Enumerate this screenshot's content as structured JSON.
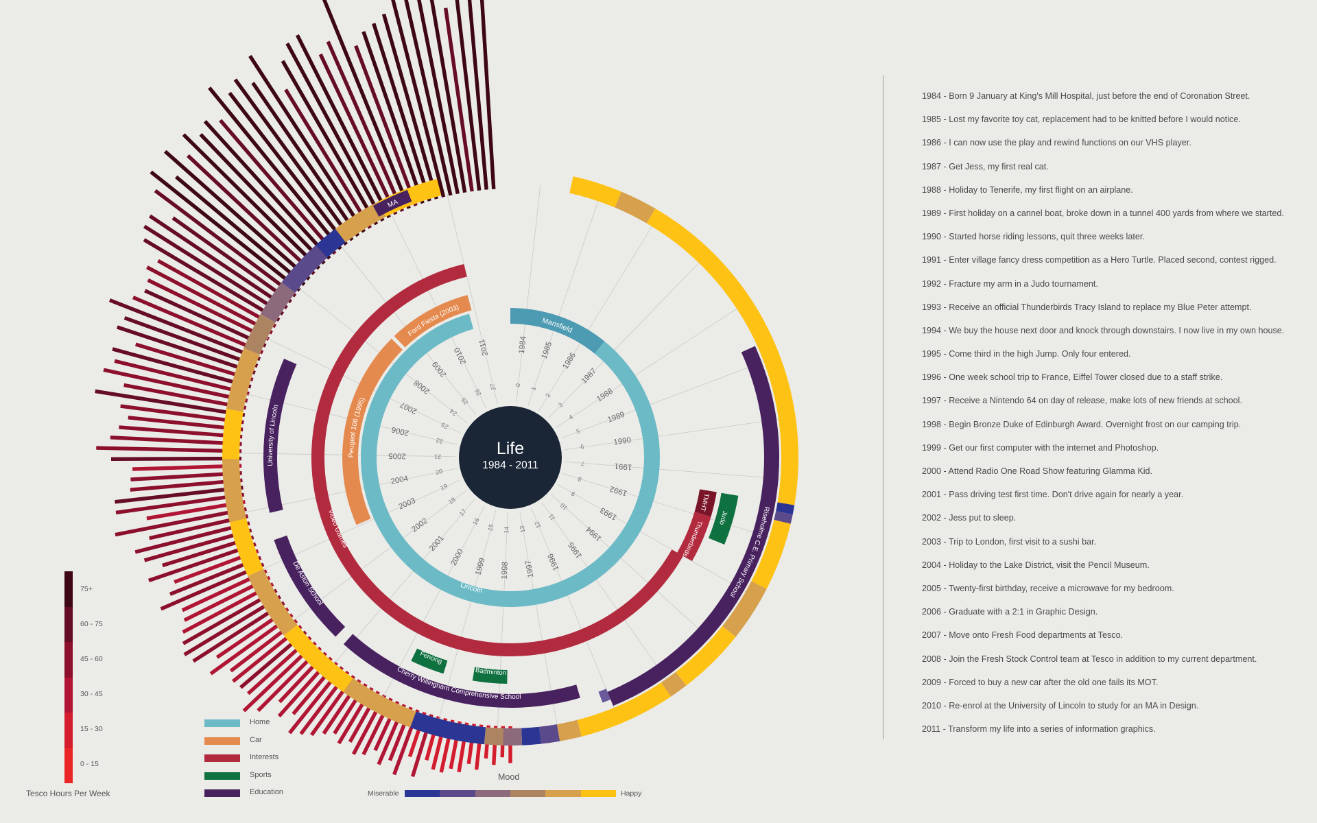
{
  "center": {
    "title": "Life",
    "subtitle": "1984 - 2011"
  },
  "colors": {
    "home": "#6bbac6",
    "home_dark": "#4d9ab3",
    "car": "#e58a4e",
    "interests": "#b22a3e",
    "interests_dark": "#7a1428",
    "sports": "#0f7040",
    "education": "#48215f",
    "center": "#1a2535",
    "background": "#ebebe8"
  },
  "years": [
    "1984",
    "1985",
    "1986",
    "1987",
    "1988",
    "1989",
    "1990",
    "1991",
    "1992",
    "1993",
    "1994",
    "1995",
    "1996",
    "1997",
    "1998",
    "1999",
    "2000",
    "2001",
    "2002",
    "2003",
    "2004",
    "2005",
    "2006",
    "2007",
    "2008",
    "2009",
    "2010",
    "2011"
  ],
  "ages": [
    "0",
    "1",
    "2",
    "3",
    "4",
    "5",
    "6",
    "7",
    "8",
    "9",
    "10",
    "11",
    "12",
    "13",
    "14",
    "15",
    "16",
    "17",
    "18",
    "19",
    "20",
    "21",
    "22",
    "23",
    "24",
    "25",
    "26",
    "27"
  ],
  "home_labels": {
    "mansfield": "Mansfield",
    "lincoln": "Lincoln"
  },
  "car_labels": {
    "peugeot": "Peugeot 106 (1995)",
    "fiesta": "Ford Fiesta (2003)"
  },
  "interest_labels": {
    "video_games": "Video Games",
    "thunderbirds": "Thunderbirds",
    "tmht": "TMHT"
  },
  "sports_labels": {
    "judo": "Judo",
    "fencing": "Fencing",
    "badminton": "Badminton"
  },
  "education_labels": {
    "university": "University of Lincoln",
    "primary": "Riseholme C.E. Primary School",
    "comprehensive": "Cherry Willingham Comprehensive School",
    "de_aston": "De Aston School",
    "ma": "MA"
  },
  "legend": [
    {
      "label": "Home",
      "color": "#6bbac6"
    },
    {
      "label": "Car",
      "color": "#e58a4e"
    },
    {
      "label": "Interests",
      "color": "#b22a3e"
    },
    {
      "label": "Sports",
      "color": "#0f7040"
    },
    {
      "label": "Education",
      "color": "#48215f"
    }
  ],
  "tesco": {
    "title": "Tesco Hours Per Week",
    "levels": [
      "75+",
      "60 - 75",
      "45 - 60",
      "30 - 45",
      "15 - 30",
      "0 - 15"
    ],
    "colors": [
      "#3d0813",
      "#660c24",
      "#8c0f2c",
      "#b01634",
      "#d31c2d",
      "#ea2525"
    ]
  },
  "mood": {
    "title": "Mood",
    "low": "Miserable",
    "high": "Happy",
    "colors": [
      "#2b3594",
      "#5a4a8c",
      "#8c6a7c",
      "#ad8462",
      "#d6a04c",
      "#fec215"
    ]
  },
  "timeline": [
    "1984 - Born 9 January at King's Mill Hospital, just before the end of Coronation Street.",
    "1985 - Lost my favorite toy cat, replacement had to be knitted before I would notice.",
    "1986 - I can now use the play and rewind functions on our VHS player.",
    "1987 - Get Jess, my first real cat.",
    "1988 - Holiday to Tenerife, my first flight on an airplane.",
    "1989 - First holiday on a cannel boat, broke down in a tunnel 400 yards from where we started.",
    "1990 - Started horse riding lessons, quit three weeks later.",
    "1991 - Enter village fancy dress competition as a Hero Turtle. Placed second, contest rigged.",
    "1992 - Fracture my arm in a Judo tournament.",
    "1993 - Receive an official Thunderbirds Tracy Island to replace my Blue Peter attempt.",
    "1994 - We buy the house next door and knock through downstairs. I now live in my own house.",
    "1995 - Come third in the high Jump. Only four entered.",
    "1996 - One week school trip to France, Eiffel Tower closed due to a staff strike.",
    "1997 - Receive a Nintendo 64 on day of release, make lots of new friends at school.",
    "1998 - Begin Bronze Duke of Edinburgh Award. Overnight frost on our camping trip.",
    "1999 - Get our first computer with the internet and Photoshop.",
    "2000 - Attend Radio One Road Show featuring Glamma Kid.",
    "2001 - Pass driving test first time. Don't drive again for nearly a year.",
    "2002 - Jess put to sleep.",
    "2003 - Trip to London, first visit to a sushi bar.",
    "2004 - Holiday to the Lake District, visit the Pencil Museum.",
    "2005 - Twenty-first birthday, receive a microwave for my bedroom.",
    "2006 - Graduate with a 2:1 in Graphic Design.",
    "2007 - Move onto Fresh Food departments at Tesco.",
    "2008 - Join the Fresh Stock Control team at Tesco in addition to my current department.",
    "2009 - Forced to buy a new car after the old one fails its MOT.",
    "2010 - Re-enrol at the University of Lincoln to study for an MA in Design.",
    "2011 - Transform my life into a series of information graphics."
  ]
}
